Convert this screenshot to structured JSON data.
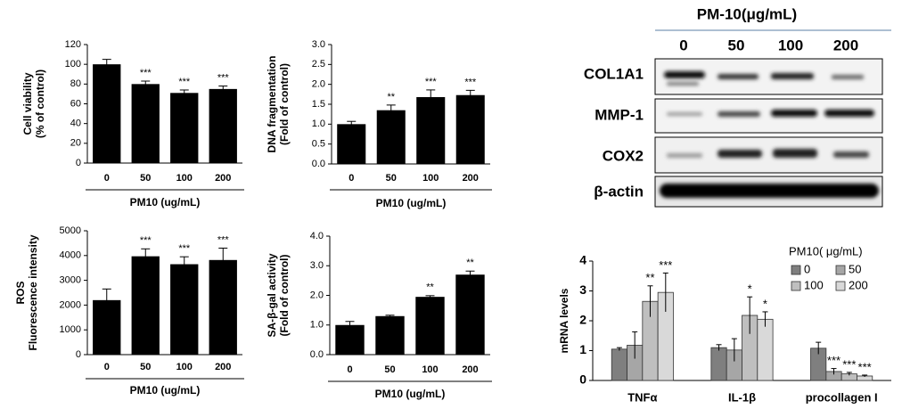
{
  "chart_data": [
    {
      "type": "bar",
      "ylabel": [
        "Cell viability",
        "(% of control)"
      ],
      "xlabel": "PM10 (ug/mL)",
      "categories": [
        "0",
        "50",
        "100",
        "200"
      ],
      "values": [
        100,
        80,
        71,
        75
      ],
      "errors": [
        5,
        3,
        3,
        3
      ],
      "annotations": [
        null,
        "***",
        "***",
        "***"
      ],
      "color": "#000000",
      "ylim": [
        0,
        120
      ],
      "yticks": [
        0,
        20,
        40,
        60,
        80,
        100,
        120
      ]
    },
    {
      "type": "bar",
      "ylabel": [
        "DNA fragmentation",
        "(Fold of control)"
      ],
      "xlabel": "PM10 (ug/mL)",
      "categories": [
        "0",
        "50",
        "100",
        "200"
      ],
      "values": [
        1.0,
        1.35,
        1.68,
        1.73
      ],
      "errors": [
        0.07,
        0.13,
        0.18,
        0.12
      ],
      "annotations": [
        null,
        "**",
        "***",
        "***"
      ],
      "color": "#000000",
      "ylim": [
        0,
        3
      ],
      "yticks": [
        {
          "value": 0,
          "label": "0.0"
        },
        0.5,
        {
          "value": 1,
          "label": "1.0"
        },
        1.5,
        {
          "value": 2,
          "label": "2.0"
        },
        2.5,
        {
          "value": 3,
          "label": "3.0"
        }
      ]
    },
    {
      "type": "bar",
      "ylabel": [
        "ROS",
        "Fluorescence intensity"
      ],
      "xlabel": "PM10 (ug/mL)",
      "categories": [
        "0",
        "50",
        "100",
        "200"
      ],
      "values": [
        2200,
        3970,
        3650,
        3820
      ],
      "errors": [
        450,
        300,
        300,
        480
      ],
      "annotations": [
        null,
        "***",
        "***",
        "***"
      ],
      "color": "#000000",
      "ylim": [
        0,
        5000
      ],
      "yticks": [
        0,
        1000,
        2000,
        3000,
        4000,
        5000
      ]
    },
    {
      "type": "bar",
      "ylabel": [
        "SA-β-gal activity",
        "(Fold of control)"
      ],
      "xlabel": "PM10 (ug/mL)",
      "categories": [
        "0",
        "50",
        "100",
        "200"
      ],
      "values": [
        1.0,
        1.3,
        1.95,
        2.7
      ],
      "errors": [
        0.12,
        0.03,
        0.04,
        0.12
      ],
      "annotations": [
        null,
        null,
        "**",
        "**"
      ],
      "color": "#000000",
      "ylim": [
        0,
        4
      ],
      "yticks": [
        {
          "value": 0,
          "label": "0.0"
        },
        {
          "value": 1,
          "label": "1.0"
        },
        {
          "value": 2,
          "label": "2.0"
        },
        {
          "value": 3,
          "label": "3.0"
        },
        {
          "value": 4,
          "label": "4.0"
        }
      ]
    },
    {
      "type": "grouped-bar",
      "ylabel": [
        "mRNA levels"
      ],
      "legend_title": "PM10( μg/mL)",
      "categories": [
        "TNFα",
        "IL-1β",
        "procollagen I"
      ],
      "series": [
        {
          "name": "0",
          "color": "#7f7f7f",
          "values": [
            1.05,
            1.1,
            1.08
          ],
          "errors": [
            0.05,
            0.1,
            0.2
          ],
          "annotations": [
            null,
            null,
            null
          ]
        },
        {
          "name": "50",
          "color": "#a6a6a6",
          "values": [
            1.18,
            1.02,
            0.3
          ],
          "errors": [
            0.45,
            0.38,
            0.1
          ],
          "annotations": [
            null,
            null,
            "***"
          ]
        },
        {
          "name": "100",
          "color": "#bfbfbf",
          "values": [
            2.65,
            2.18,
            0.22
          ],
          "errors": [
            0.52,
            0.62,
            0.05
          ],
          "annotations": [
            "**",
            "*",
            "***"
          ]
        },
        {
          "name": "200",
          "color": "#d9d9d9",
          "values": [
            2.95,
            2.05,
            0.15
          ],
          "errors": [
            0.65,
            0.25,
            0.03
          ],
          "annotations": [
            "***",
            "*",
            "***"
          ]
        }
      ],
      "ylim": [
        0,
        4
      ],
      "yticks": [
        0,
        1,
        2,
        3,
        4
      ]
    }
  ],
  "blot": {
    "title": "PM-10(μg/mL)",
    "lanes": [
      "0",
      "50",
      "100",
      "200"
    ],
    "rows": [
      "COL1A1",
      "MMP-1",
      "COX2",
      "β-actin"
    ]
  }
}
